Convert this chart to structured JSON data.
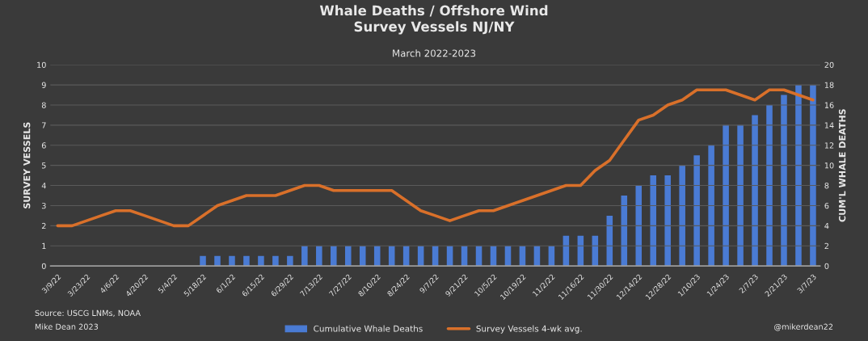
{
  "chart_data": {
    "type": "bar",
    "title": "Whale Deaths / Offshore Wind\nSurvey Vessels NJ/NY",
    "subtitle": "March 2022-2023",
    "ylabel": "SURVEY VESSELS",
    "y2label": "CUM'L WHALE DEATHS",
    "categories": [
      "3/9/22",
      null,
      "3/23/22",
      null,
      "4/6/22",
      null,
      "4/20/22",
      null,
      "5/4/22",
      null,
      "5/18/22",
      null,
      "6/1/22",
      null,
      "6/15/22",
      null,
      "6/29/22",
      null,
      "7/13/22",
      null,
      "7/27/22",
      null,
      "8/10/22",
      null,
      "8/24/22",
      null,
      "9/7/22",
      null,
      "9/21/22",
      null,
      "10/5/22",
      null,
      "10/19/22",
      null,
      "11/2/22",
      null,
      "11/16/22",
      null,
      "11/30/22",
      null,
      "12/14/22",
      null,
      "12/28/22",
      null,
      "1/10/23",
      null,
      "1/24/23",
      null,
      "2/7/23",
      null,
      "2/21/23",
      null,
      "3/7/23"
    ],
    "series": [
      {
        "name": "Cumulative Whale Deaths",
        "axis": "y2",
        "color": "#4a7bd4",
        "values": [
          0,
          0,
          0,
          0,
          0,
          0,
          0,
          0,
          0,
          0,
          1,
          1,
          1,
          1,
          1,
          1,
          1,
          2,
          2,
          2,
          2,
          2,
          2,
          2,
          2,
          2,
          2,
          2,
          2,
          2,
          2,
          2,
          2,
          2,
          2,
          3,
          3,
          3,
          5,
          7,
          8,
          9,
          9,
          10,
          11,
          12,
          14,
          14,
          15,
          16,
          17,
          18,
          18
        ]
      },
      {
        "name": "Survey Vessels 4-wk avg.",
        "type": "line",
        "axis": "y",
        "color": "#d9702a",
        "values": [
          2,
          2,
          2.25,
          2.5,
          2.75,
          2.75,
          2.5,
          2.25,
          2,
          2,
          2.5,
          3,
          3.25,
          3.5,
          3.5,
          3.5,
          3.75,
          4,
          4,
          3.75,
          3.75,
          3.75,
          3.75,
          3.75,
          3.25,
          2.75,
          2.5,
          2.25,
          2.5,
          2.75,
          2.75,
          3,
          3.25,
          3.5,
          3.75,
          4,
          4,
          4.75,
          5.25,
          6.25,
          7.25,
          7.5,
          8,
          8.25,
          8.75,
          8.75,
          8.75,
          8.5,
          8.25,
          8.75,
          8.75,
          8.5,
          8.25
        ]
      }
    ],
    "ylim": [
      0,
      10
    ],
    "yticks": [
      0,
      1,
      2,
      3,
      4,
      5,
      6,
      7,
      8,
      9,
      10
    ],
    "y2lim": [
      0,
      20
    ],
    "y2ticks": [
      0,
      2,
      4,
      6,
      8,
      10,
      12,
      14,
      16,
      18,
      20
    ],
    "grid": "y",
    "legend": "bottom",
    "annotations": [
      "Source: USCG LNMs, NOAA",
      "Mike Dean 2023",
      "@mikerdean22"
    ]
  }
}
